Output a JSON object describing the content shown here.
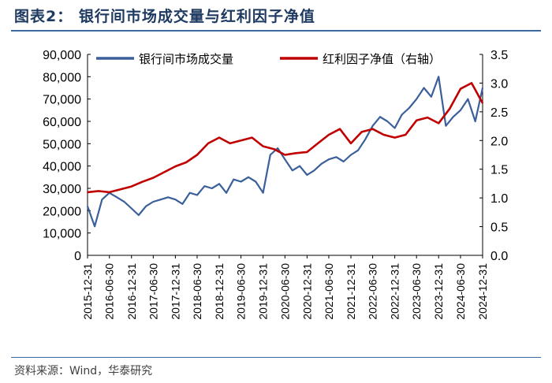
{
  "header": {
    "title": "图表2：  银行间市场成交量与红利因子净值"
  },
  "footer": {
    "source": "资料来源：Wind，华泰研究"
  },
  "chart_data": {
    "type": "line",
    "title": "图表2：  银行间市场成交量与红利因子净值",
    "x_ticks": [
      "2015-12-31",
      "2016-06-30",
      "2016-12-31",
      "2017-06-30",
      "2017-12-31",
      "2018-06-30",
      "2018-12-31",
      "2019-06-30",
      "2019-12-31",
      "2020-06-30",
      "2020-12-31",
      "2021-06-30",
      "2021-12-31",
      "2022-06-30",
      "2022-12-31",
      "2023-06-30",
      "2023-12-31",
      "2024-06-30",
      "2024-12-31"
    ],
    "y_left": {
      "ylim": [
        0,
        90000
      ],
      "ticks": [
        "0",
        "10,000",
        "20,000",
        "30,000",
        "40,000",
        "50,000",
        "60,000",
        "70,000",
        "80,000",
        "90,000"
      ]
    },
    "y_right": {
      "ylim": [
        0,
        3.5
      ],
      "ticks": [
        "0.0",
        "0.5",
        "1.0",
        "1.5",
        "2.0",
        "2.5",
        "3.0",
        "3.5"
      ]
    },
    "grid": false,
    "legend_position": "top",
    "series": [
      {
        "name": "银行间市场成交量",
        "axis": "left",
        "color": "#3a5f9a",
        "x": [
          "2015-12-31",
          "2016-02-29",
          "2016-04-30",
          "2016-06-30",
          "2016-08-31",
          "2016-10-31",
          "2016-12-31",
          "2017-02-28",
          "2017-04-30",
          "2017-06-30",
          "2017-08-31",
          "2017-10-31",
          "2017-12-31",
          "2018-02-28",
          "2018-04-30",
          "2018-06-30",
          "2018-08-31",
          "2018-10-31",
          "2018-12-31",
          "2019-02-28",
          "2019-04-30",
          "2019-06-30",
          "2019-08-31",
          "2019-10-31",
          "2019-12-31",
          "2020-02-29",
          "2020-04-30",
          "2020-06-30",
          "2020-08-31",
          "2020-10-31",
          "2020-12-31",
          "2021-02-28",
          "2021-04-30",
          "2021-06-30",
          "2021-08-31",
          "2021-10-31",
          "2021-12-31",
          "2022-02-28",
          "2022-04-30",
          "2022-06-30",
          "2022-08-31",
          "2022-10-31",
          "2022-12-31",
          "2023-02-28",
          "2023-04-30",
          "2023-06-30",
          "2023-08-31",
          "2023-10-31",
          "2023-12-31",
          "2024-02-29",
          "2024-04-30",
          "2024-06-30",
          "2024-08-31",
          "2024-10-31",
          "2024-12-31"
        ],
        "values": [
          22000,
          13000,
          25000,
          28000,
          26000,
          24000,
          21000,
          18000,
          22000,
          24000,
          25000,
          26000,
          25000,
          23000,
          28000,
          27000,
          31000,
          30000,
          32000,
          28000,
          34000,
          33000,
          35000,
          33000,
          28000,
          45000,
          48000,
          43000,
          38000,
          40000,
          36000,
          38000,
          41000,
          43000,
          44000,
          42000,
          45000,
          47000,
          52000,
          58000,
          62000,
          60000,
          57000,
          63000,
          66000,
          70000,
          75000,
          71000,
          80000,
          58000,
          62000,
          65000,
          70000,
          60000,
          75000
        ]
      },
      {
        "name": "红利因子净值（右轴）",
        "axis": "right",
        "color": "#c00000",
        "x": [
          "2015-12-31",
          "2016-03-31",
          "2016-06-30",
          "2016-09-30",
          "2016-12-31",
          "2017-03-31",
          "2017-06-30",
          "2017-09-30",
          "2017-12-31",
          "2018-03-31",
          "2018-06-30",
          "2018-09-30",
          "2018-12-31",
          "2019-03-31",
          "2019-06-30",
          "2019-09-30",
          "2019-12-31",
          "2020-03-31",
          "2020-06-30",
          "2020-09-30",
          "2020-12-31",
          "2021-03-31",
          "2021-06-30",
          "2021-09-30",
          "2021-12-31",
          "2022-03-31",
          "2022-06-30",
          "2022-09-30",
          "2022-12-31",
          "2023-03-31",
          "2023-06-30",
          "2023-09-30",
          "2023-12-31",
          "2024-03-31",
          "2024-06-30",
          "2024-09-30",
          "2024-12-31"
        ],
        "values": [
          1.1,
          1.12,
          1.1,
          1.15,
          1.2,
          1.28,
          1.35,
          1.45,
          1.55,
          1.62,
          1.75,
          1.95,
          2.05,
          1.95,
          2.0,
          2.05,
          1.9,
          1.85,
          1.75,
          1.78,
          1.8,
          1.95,
          2.1,
          2.2,
          1.95,
          2.15,
          2.2,
          2.1,
          2.05,
          2.1,
          2.35,
          2.4,
          2.3,
          2.55,
          2.9,
          3.0,
          2.65
        ]
      }
    ]
  }
}
